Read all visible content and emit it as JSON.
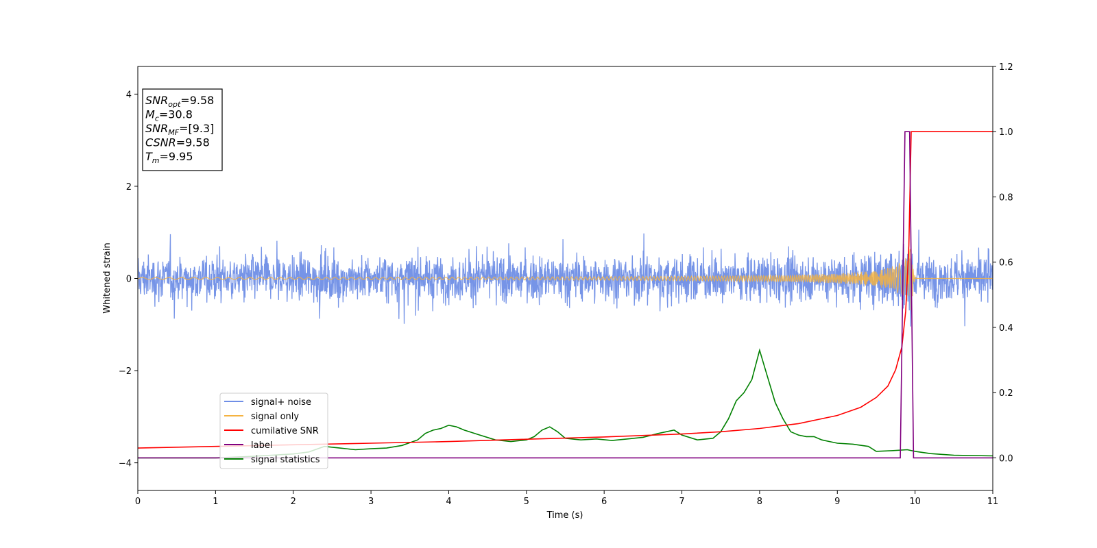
{
  "chart_data": {
    "type": "line",
    "xlabel": "Time (s)",
    "ylabel": "Whitened strain",
    "xlim": [
      0,
      11
    ],
    "ylim_left": [
      -4.6,
      4.6
    ],
    "ylim_right": [
      -0.1,
      1.2
    ],
    "x_ticks": [
      "0",
      "1",
      "2",
      "3",
      "4",
      "5",
      "6",
      "7",
      "8",
      "9",
      "10",
      "11"
    ],
    "y_left_ticks": [
      "−4",
      "−2",
      "0",
      "2",
      "4"
    ],
    "y_right_ticks": [
      "0.0",
      "0.2",
      "0.4",
      "0.6",
      "0.8",
      "1.0",
      "1.2"
    ],
    "y_left_tick_values": [
      -4,
      -2,
      0,
      2,
      4
    ],
    "y_right_tick_values": [
      0,
      0.2,
      0.4,
      0.6,
      0.8,
      1.0,
      1.2
    ],
    "legend_position": "lower-left",
    "series": [
      {
        "name": "signal+ noise",
        "axis": "left",
        "color": "#6f8ee6",
        "description_amplitude": 0.55
      },
      {
        "name": "signal only",
        "axis": "left",
        "color": "#f5b341",
        "merger_time": 9.95
      },
      {
        "name": "cumilative SNR",
        "axis": "right",
        "color": "#ff0000",
        "x": [
          0,
          1,
          2,
          3,
          4,
          5,
          6,
          7,
          7.5,
          8,
          8.5,
          9,
          9.3,
          9.5,
          9.65,
          9.75,
          9.83,
          9.88,
          9.92,
          9.95,
          11
        ],
        "y": [
          0.03,
          0.035,
          0.04,
          0.045,
          0.05,
          0.057,
          0.064,
          0.073,
          0.08,
          0.09,
          0.105,
          0.13,
          0.155,
          0.185,
          0.22,
          0.27,
          0.34,
          0.45,
          0.65,
          1.0,
          1.0
        ]
      },
      {
        "name": "label",
        "axis": "right",
        "color": "#800080",
        "x": [
          0,
          9.81,
          9.87,
          9.93,
          9.98,
          10.0,
          11
        ],
        "y": [
          0,
          0,
          1.0,
          1.0,
          0,
          0,
          0
        ]
      },
      {
        "name": "signal statistics",
        "axis": "right",
        "color": "#008000",
        "x": [
          0,
          0.5,
          1,
          1.5,
          2,
          2.2,
          2.4,
          2.6,
          2.8,
          3,
          3.2,
          3.4,
          3.6,
          3.7,
          3.8,
          3.9,
          4.0,
          4.1,
          4.2,
          4.4,
          4.6,
          4.8,
          5.0,
          5.1,
          5.2,
          5.3,
          5.4,
          5.5,
          5.7,
          5.9,
          6.1,
          6.3,
          6.5,
          6.7,
          6.9,
          7.0,
          7.2,
          7.4,
          7.5,
          7.6,
          7.7,
          7.8,
          7.9,
          8.0,
          8.1,
          8.2,
          8.3,
          8.4,
          8.5,
          8.6,
          8.7,
          8.8,
          8.9,
          9.0,
          9.2,
          9.4,
          9.5,
          9.7,
          9.9,
          10.0,
          10.2,
          10.5,
          11
        ],
        "y": [
          0.0,
          0.0,
          0.0,
          0.005,
          0.012,
          0.018,
          0.035,
          0.03,
          0.025,
          0.028,
          0.03,
          0.038,
          0.055,
          0.075,
          0.085,
          0.09,
          0.1,
          0.095,
          0.085,
          0.07,
          0.055,
          0.05,
          0.055,
          0.065,
          0.085,
          0.095,
          0.08,
          0.06,
          0.055,
          0.058,
          0.053,
          0.058,
          0.063,
          0.075,
          0.085,
          0.07,
          0.055,
          0.06,
          0.08,
          0.12,
          0.175,
          0.2,
          0.24,
          0.33,
          0.25,
          0.17,
          0.12,
          0.08,
          0.07,
          0.065,
          0.065,
          0.055,
          0.05,
          0.045,
          0.042,
          0.035,
          0.02,
          0.022,
          0.025,
          0.02,
          0.013,
          0.008,
          0.006
        ]
      }
    ],
    "info_box": [
      {
        "main": "SNR",
        "sub": "opt",
        "rest": "=9.58"
      },
      {
        "main": "M",
        "sub": "c",
        "rest": "=30.8"
      },
      {
        "main": "SNR",
        "sub": "MF",
        "rest": "=[9.3]"
      },
      {
        "main": "CSNR",
        "sub": "",
        "rest": "=9.58"
      },
      {
        "main": "T",
        "sub": "m",
        "rest": "=9.95"
      }
    ]
  }
}
